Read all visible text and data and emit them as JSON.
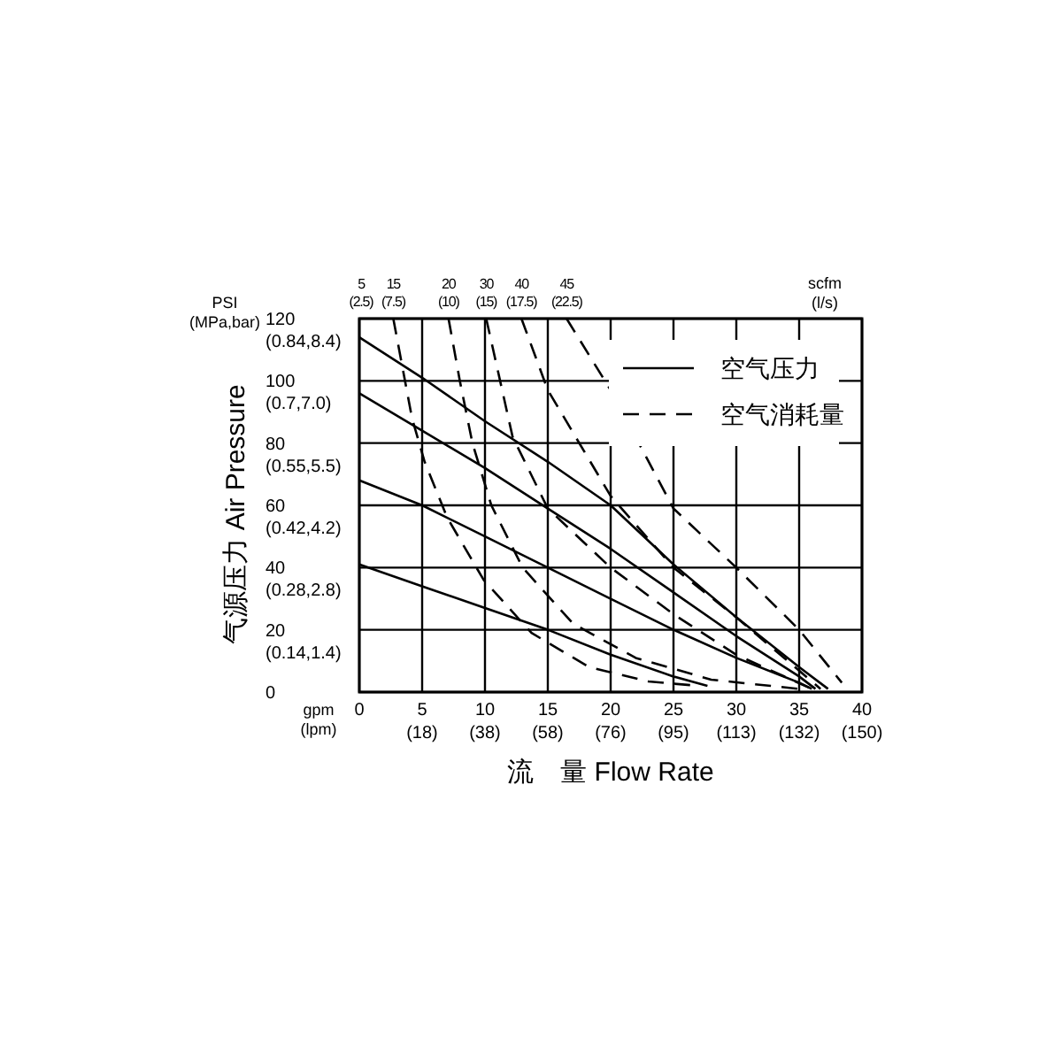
{
  "chart_data": {
    "type": "line",
    "xlabel": "流　量 Flow Rate",
    "ylabel": "气源压力  Air Pressure",
    "annotations": [
      "PSI (MPa,bar)",
      "gpm (lpm)",
      "scfm (l/s)",
      "5 (2.5)",
      "(18)",
      "(38)",
      "(58)",
      "(76)",
      "(95)",
      "(113)",
      "(132)",
      "(150)",
      "(0.14,1.4)",
      "(0.28,2.8)",
      "(0.42,4.2)",
      "(0.55,5.5)",
      "(0.7,7.0)",
      "(0.84,8.4)",
      {
        "text": "15 (7.5)",
        "x": 2.7,
        "y": 120
      },
      {
        "text": "20 (10)",
        "x": 7.1,
        "y": 120
      },
      {
        "text": "30 (15)",
        "x": 10.1,
        "y": 120
      },
      {
        "text": "40 (17.5)",
        "x": 12.9,
        "y": 120
      },
      {
        "text": "45 (22.5)",
        "x": 16.5,
        "y": 120
      }
    ],
    "xlim": [
      0,
      40
    ],
    "ylim": [
      0,
      120
    ],
    "xticks": [
      0,
      5,
      10,
      15,
      20,
      25,
      30,
      35,
      40
    ],
    "yticks": [
      0,
      20,
      40,
      60,
      80,
      100,
      120
    ],
    "grid": true,
    "legend": "top right",
    "marker": "none",
    "series": [
      {
        "name": "空气压力",
        "color": "#000000",
        "line_style": "solid",
        "x": [
          0,
          5,
          10,
          15,
          20,
          25,
          30,
          35,
          37.3
        ],
        "values": [
          114,
          101,
          87,
          74,
          60,
          41,
          24,
          8,
          1
        ]
      },
      {
        "color": "#000000",
        "line_style": "solid",
        "x": [
          0,
          5,
          10,
          15,
          20,
          25,
          30,
          35,
          36.3
        ],
        "values": [
          96,
          84,
          72,
          59,
          46,
          32,
          18,
          5,
          1
        ]
      },
      {
        "color": "#000000",
        "line_style": "solid",
        "x": [
          0,
          5,
          10,
          15,
          20,
          25,
          30,
          35,
          36
        ],
        "values": [
          68,
          60,
          50,
          40,
          30,
          20,
          11,
          3,
          1
        ]
      },
      {
        "color": "#000000",
        "line_style": "solid",
        "x": [
          0,
          5,
          10,
          15,
          20,
          25,
          27.7
        ],
        "values": [
          41,
          34,
          27,
          20,
          12,
          5,
          2
        ]
      },
      {
        "name": "空气消耗量",
        "color": "#000000",
        "line_style": "dashed",
        "x": [
          2.7,
          4.2,
          5.2,
          7,
          9.9,
          13.7,
          18.3,
          23,
          27
        ],
        "values": [
          120,
          88,
          74,
          56,
          36,
          19,
          8,
          3.4,
          2
        ]
      },
      {
        "color": "#000000",
        "line_style": "dashed",
        "x": [
          7.1,
          8,
          9,
          10.5,
          13,
          17,
          22,
          28,
          35
        ],
        "values": [
          120,
          100,
          80,
          60,
          40,
          22,
          11,
          4,
          1
        ]
      },
      {
        "color": "#000000",
        "line_style": "dashed",
        "x": [
          10.1,
          12.2,
          15,
          20,
          25,
          30,
          36
        ],
        "values": [
          120,
          82,
          59,
          40,
          25,
          12,
          1
        ]
      },
      {
        "color": "#000000",
        "line_style": "dashed",
        "x": [
          12.9,
          15,
          20,
          25,
          30,
          36.7
        ],
        "values": [
          120,
          97,
          63,
          40,
          24,
          1
        ]
      },
      {
        "color": "#000000",
        "line_style": "dashed",
        "x": [
          16.5,
          20,
          25,
          30,
          35,
          38.4
        ],
        "values": [
          120,
          97,
          59,
          40,
          20,
          3
        ]
      }
    ]
  }
}
